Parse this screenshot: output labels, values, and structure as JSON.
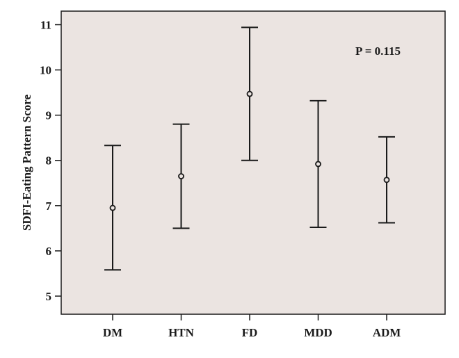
{
  "chart_data": {
    "type": "errorbar",
    "title": "",
    "xlabel": "",
    "ylabel": "SDFI-Eating Pattern Score",
    "ylim": [
      4.6,
      11.3
    ],
    "yticks": [
      5,
      6,
      7,
      8,
      9,
      10,
      11
    ],
    "grid": false,
    "legend": "none",
    "categories": [
      "DM",
      "HTN",
      "FD",
      "MDD",
      "ADM"
    ],
    "series": [
      {
        "mean": [
          6.95,
          7.65,
          9.47,
          7.92,
          7.57
        ],
        "lower": [
          5.58,
          6.5,
          8.0,
          6.52,
          6.62
        ],
        "upper": [
          8.33,
          8.8,
          10.94,
          9.32,
          8.52
        ]
      }
    ],
    "annotation": "P = 0.115",
    "colors": {
      "plot_background": "#ebe4e1",
      "ink": "#1a1a1a"
    }
  }
}
